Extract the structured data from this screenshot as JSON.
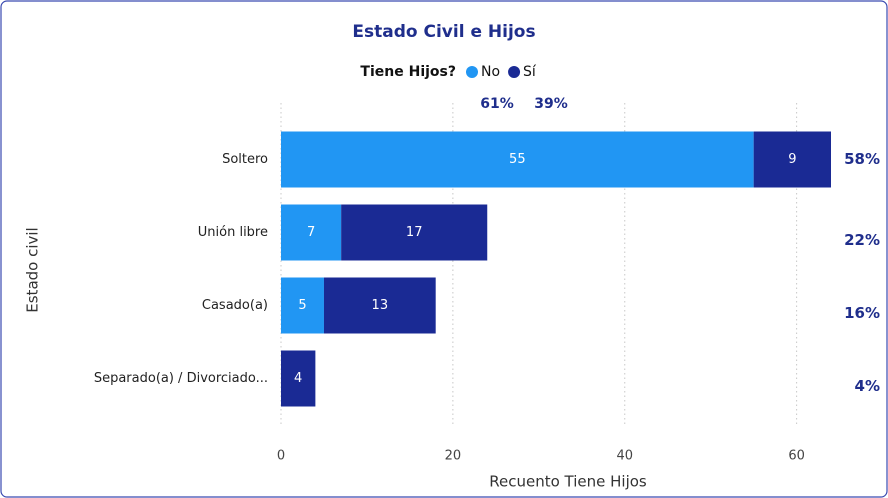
{
  "chart_data": {
    "type": "stacked-bar-horizontal",
    "title": "Estado Civil e Hijos",
    "legend_title": "Tiene Hijos?",
    "categories": [
      "Soltero",
      "Unión libre",
      "Casado(a)",
      "Separado(a) / Divorciado..."
    ],
    "series": [
      {
        "name": "No",
        "color": "#2196f3",
        "values": [
          55,
          7,
          5,
          null
        ],
        "share": 61,
        "share_label": "61%"
      },
      {
        "name": "Sí",
        "color": "#1a2a94",
        "values": [
          9,
          17,
          13,
          4
        ],
        "share": 39,
        "share_label": "39%"
      }
    ],
    "row_percent": {
      "values": [
        58,
        22,
        16,
        4
      ],
      "value_labels": [
        "58%",
        "22%",
        "16%",
        "4%"
      ]
    },
    "xlabel": "Recuento Tiene Hijos",
    "ylabel": "Estado civil",
    "xlim": [
      0,
      64
    ],
    "xticks": [
      0,
      20,
      40,
      60
    ],
    "grid": true
  }
}
